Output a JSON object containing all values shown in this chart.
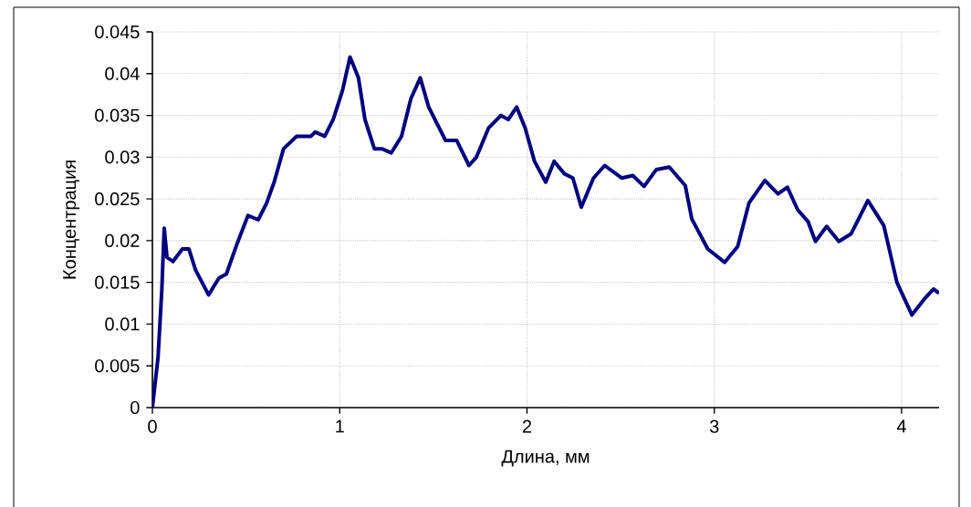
{
  "chart_data": {
    "type": "line",
    "xlabel": "Длина, мм",
    "ylabel": "Концентрация",
    "xlim": [
      0,
      4.2
    ],
    "ylim": [
      0,
      0.045
    ],
    "xticks": [
      0,
      1,
      2,
      3,
      4
    ],
    "yticks": [
      0,
      0.005,
      0.01,
      0.015,
      0.02,
      0.025,
      0.03,
      0.035,
      0.04,
      0.045
    ],
    "grid": true,
    "marker": "none",
    "line_style": "solid",
    "series": [
      {
        "color": "#000080",
        "x": [
          0,
          0.015,
          0.03,
          0.05,
          0.063,
          0.078,
          0.11,
          0.16,
          0.195,
          0.23,
          0.3,
          0.355,
          0.395,
          0.45,
          0.51,
          0.565,
          0.61,
          0.65,
          0.7,
          0.77,
          0.845,
          0.87,
          0.92,
          0.965,
          1.015,
          1.055,
          1.1,
          1.135,
          1.185,
          1.225,
          1.275,
          1.33,
          1.38,
          1.43,
          1.475,
          1.565,
          1.625,
          1.69,
          1.73,
          1.795,
          1.86,
          1.9,
          1.945,
          1.99,
          2.04,
          2.1,
          2.145,
          2.2,
          2.245,
          2.29,
          2.355,
          2.415,
          2.505,
          2.565,
          2.625,
          2.69,
          2.76,
          2.845,
          2.88,
          2.965,
          3.055,
          3.125,
          3.185,
          3.27,
          3.34,
          3.39,
          3.445,
          3.5,
          3.54,
          3.6,
          3.665,
          3.73,
          3.82,
          3.905,
          3.975,
          4.055,
          4.125,
          4.17,
          4.2
        ],
        "values": [
          0,
          0.003,
          0.006,
          0.014,
          0.0215,
          0.018,
          0.0175,
          0.019,
          0.019,
          0.0165,
          0.0135,
          0.0155,
          0.016,
          0.0195,
          0.023,
          0.0225,
          0.0245,
          0.027,
          0.031,
          0.0325,
          0.0325,
          0.033,
          0.0325,
          0.0345,
          0.038,
          0.042,
          0.0395,
          0.0345,
          0.031,
          0.031,
          0.0305,
          0.0325,
          0.037,
          0.0395,
          0.036,
          0.032,
          0.032,
          0.029,
          0.03,
          0.0335,
          0.035,
          0.0345,
          0.036,
          0.0335,
          0.0295,
          0.027,
          0.0295,
          0.028,
          0.0275,
          0.024,
          0.0275,
          0.029,
          0.0275,
          0.0278,
          0.0265,
          0.0285,
          0.0288,
          0.0266,
          0.0226,
          0.019,
          0.0174,
          0.0193,
          0.0245,
          0.0272,
          0.0256,
          0.0264,
          0.0237,
          0.0223,
          0.0199,
          0.0217,
          0.0199,
          0.0208,
          0.0248,
          0.0218,
          0.015,
          0.0111,
          0.0131,
          0.0142,
          0.0137
        ]
      }
    ]
  }
}
